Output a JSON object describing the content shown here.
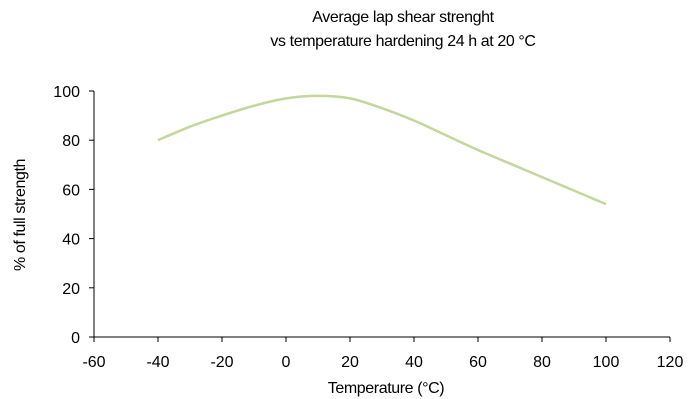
{
  "chart_data": {
    "type": "line",
    "title_lines": [
      "Average lap shear strenght",
      "vs temperature hardening 24 h at 20 °C"
    ],
    "xlabel": "Temperature (°C)",
    "ylabel": "% of full strength",
    "xlim": [
      -60,
      120
    ],
    "ylim": [
      0,
      100
    ],
    "xticks": [
      -60,
      -40,
      -20,
      0,
      20,
      40,
      60,
      80,
      100,
      120
    ],
    "yticks": [
      0,
      20,
      40,
      60,
      80,
      100
    ],
    "grid": false,
    "series": [
      {
        "color": "#c3d69b",
        "x": [
          -40,
          -30,
          -20,
          -10,
          0,
          10,
          20,
          30,
          40,
          50,
          60,
          70,
          80,
          90,
          100
        ],
        "y": [
          80,
          85.5,
          90,
          94,
          97,
          98,
          97,
          93,
          88,
          82,
          76,
          70.5,
          65,
          59.5,
          54
        ]
      }
    ]
  }
}
